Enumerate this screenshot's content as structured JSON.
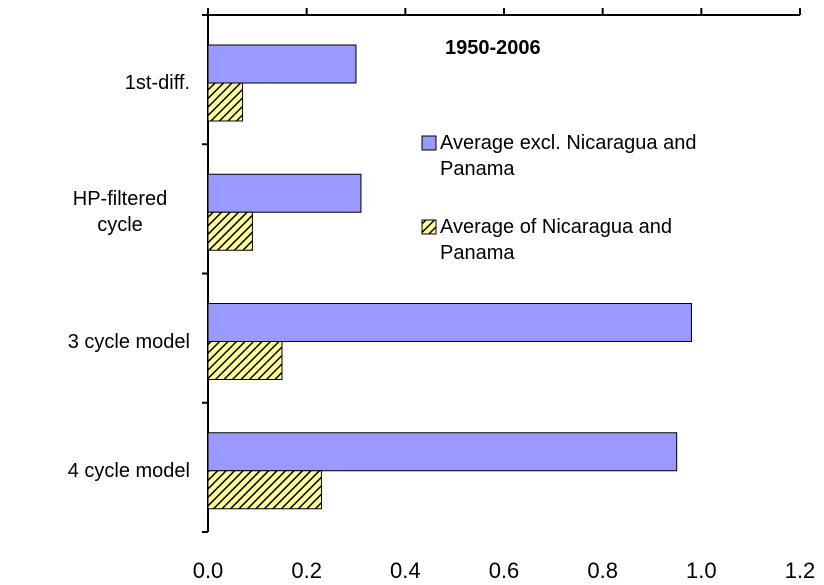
{
  "chart_data": {
    "type": "hbar",
    "legend_title": "1950-2006",
    "categories": [
      "1st-diff.",
      "HP-filtered cycle",
      "3 cycle model",
      "4 cycle model"
    ],
    "series": [
      {
        "name": "Average excl. Nicaragua and Panama",
        "color": "#9999ff",
        "values": [
          0.3,
          0.31,
          0.98,
          0.95
        ]
      },
      {
        "name": "Average of Nicaragua and Panama",
        "color": "#ffff99",
        "pattern": "hatch",
        "values": [
          0.07,
          0.09,
          0.15,
          0.23
        ]
      }
    ],
    "xlim": [
      0,
      1.2
    ],
    "xticks": [
      {
        "value": 0,
        "label": "0.0"
      },
      0.2,
      0.4,
      0.6,
      0.8,
      {
        "value": 1,
        "label": "1.0"
      },
      1.2
    ]
  }
}
